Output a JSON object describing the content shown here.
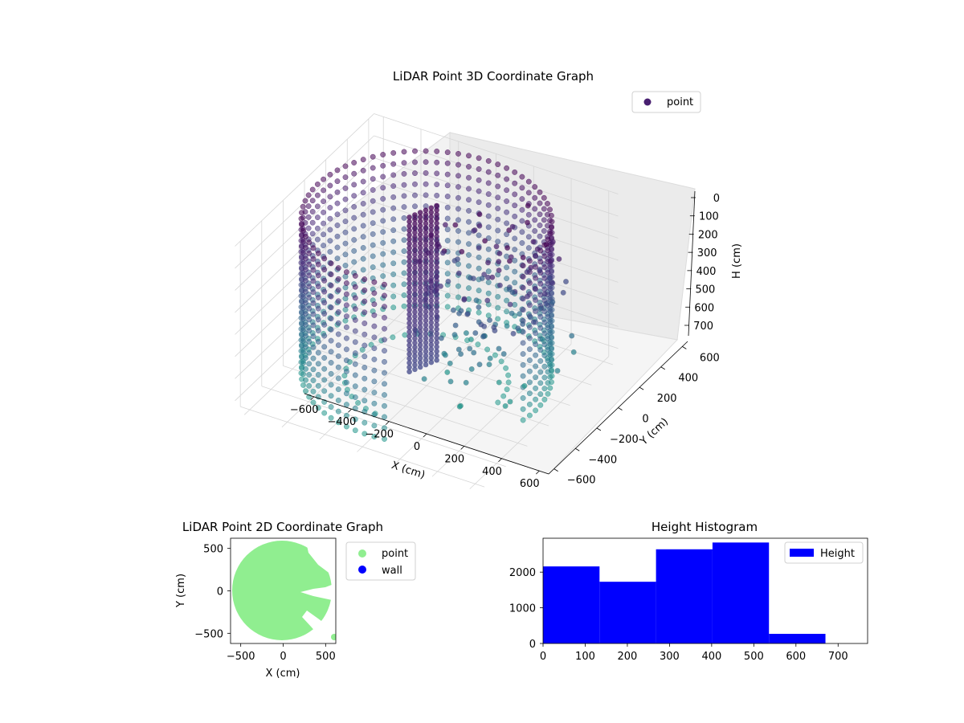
{
  "chart_data": [
    {
      "type": "scatter",
      "projection": "3d",
      "title": "LiDAR Point 3D Coordinate Graph",
      "xlabel": "X (cm)",
      "ylabel": "Y (cm)",
      "zlabel": "H (cm)",
      "xticks": [
        "−600",
        "−400",
        "−200",
        "0",
        "200",
        "400",
        "600"
      ],
      "yticks": [
        "−600",
        "−400",
        "−200",
        "0",
        "200",
        "400",
        "600"
      ],
      "zticks": [
        "0",
        "100",
        "200",
        "300",
        "400",
        "500",
        "600",
        "700"
      ],
      "xlim": [
        -650,
        650
      ],
      "ylim": [
        -650,
        650
      ],
      "zlim": [
        0,
        750
      ],
      "z_axis_inverted": true,
      "colormap": "viridis",
      "legend": [
        {
          "label": "point",
          "color": "#481f70",
          "marker": "circle"
        }
      ],
      "legend_position": "top-right",
      "grid": true,
      "approx_structure": {
        "outer_ring_radius": 580,
        "ring_heights": [
          0,
          50,
          100,
          150,
          200,
          250,
          300,
          350,
          400,
          450,
          500,
          550,
          600,
          650,
          700
        ],
        "scattered_clusters_region": {
          "x": [
            0,
            600
          ],
          "y": [
            -200,
            400
          ]
        }
      }
    },
    {
      "type": "scatter",
      "title": "LiDAR Point 2D Coordinate Graph",
      "xlabel": "X (cm)",
      "ylabel": "Y (cm)",
      "xticks": [
        "−500",
        "0",
        "500"
      ],
      "yticks": [
        "−500",
        "0",
        "500"
      ],
      "xlim": [
        -620,
        620
      ],
      "ylim": [
        -620,
        620
      ],
      "legend": [
        {
          "label": "point",
          "color": "#90ee90",
          "marker": "circle"
        },
        {
          "label": "wall",
          "color": "#0000ff",
          "marker": "circle"
        }
      ],
      "legend_position": "outside-right",
      "approx_shape": "filled disk radius ~600 centered at origin, clipped at right axis edge, with white gaps on the right side"
    },
    {
      "type": "bar",
      "title": "Height Histogram",
      "xticks": [
        "0",
        "100",
        "200",
        "300",
        "400",
        "500",
        "600",
        "700"
      ],
      "yticks": [
        "0",
        "1000",
        "2000"
      ],
      "xlim": [
        0,
        770
      ],
      "ylim": [
        0,
        2950
      ],
      "bins": [
        {
          "x0": 0,
          "x1": 134,
          "count": 2160
        },
        {
          "x0": 134,
          "x1": 268,
          "count": 1730
        },
        {
          "x0": 268,
          "x1": 402,
          "count": 2640
        },
        {
          "x0": 402,
          "x1": 536,
          "count": 2830
        },
        {
          "x0": 536,
          "x1": 670,
          "count": 270
        }
      ],
      "color": "#0000ff",
      "legend": [
        {
          "label": "Height",
          "color": "#0000ff"
        }
      ],
      "legend_position": "top-right"
    }
  ]
}
